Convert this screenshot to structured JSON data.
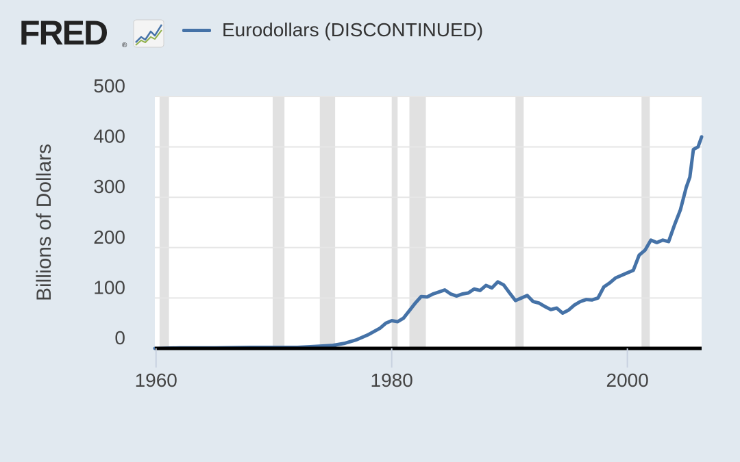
{
  "header": {
    "logo_text": "FRED",
    "logo_registered": "®",
    "logo_icon": "line-chart-icon",
    "legend_label": "Eurodollars (DISCONTINUED)"
  },
  "colors": {
    "background": "#e1e9f0",
    "plot_background": "#ffffff",
    "series": "#4572a7",
    "recession_band": "#e1e1e1",
    "grid": "#e6e6e6",
    "baseline": "#000000"
  },
  "chart_data": {
    "type": "line",
    "title": "",
    "xlabel": "",
    "ylabel": "Billions of Dollars",
    "xlim": [
      1959.9,
      2006.3
    ],
    "ylim": [
      0,
      500
    ],
    "yticks": [
      0,
      100,
      200,
      300,
      400,
      500
    ],
    "xticks": [
      1960,
      1980,
      2000
    ],
    "grid": true,
    "legend_position": "top-left",
    "recessions": [
      [
        1960.3,
        1961.1
      ],
      [
        1969.9,
        1970.9
      ],
      [
        1973.9,
        1975.2
      ],
      [
        1980.0,
        1980.5
      ],
      [
        1981.5,
        1982.9
      ],
      [
        1990.5,
        1991.2
      ],
      [
        2001.2,
        2001.9
      ]
    ],
    "series": [
      {
        "name": "Eurodollars (DISCONTINUED)",
        "x": [
          1959.9,
          1962,
          1965,
          1968,
          1970,
          1972,
          1973.5,
          1975,
          1976,
          1977,
          1978,
          1979,
          1979.5,
          1980,
          1980.5,
          1981,
          1981.5,
          1982,
          1982.5,
          1983,
          1983.5,
          1984,
          1984.5,
          1985,
          1985.5,
          1986,
          1986.5,
          1987,
          1987.5,
          1988,
          1988.5,
          1989,
          1989.5,
          1990,
          1990.5,
          1991,
          1991.5,
          1992,
          1992.5,
          1993,
          1993.5,
          1994,
          1994.5,
          1995,
          1995.5,
          1996,
          1996.5,
          1997,
          1997.5,
          1998,
          1998.5,
          1999,
          1999.5,
          2000,
          2000.5,
          2001,
          2001.5,
          2002,
          2002.5,
          2003,
          2003.5,
          2004,
          2004.5,
          2005,
          2005.3,
          2005.6,
          2006,
          2006.3
        ],
        "values": [
          0,
          1,
          1,
          2,
          2,
          2,
          4,
          6,
          10,
          17,
          27,
          40,
          50,
          55,
          53,
          60,
          75,
          90,
          103,
          102,
          108,
          112,
          116,
          108,
          104,
          108,
          110,
          118,
          115,
          125,
          120,
          132,
          126,
          110,
          95,
          100,
          105,
          93,
          90,
          83,
          77,
          80,
          70,
          76,
          86,
          93,
          97,
          96,
          100,
          122,
          130,
          140,
          145,
          150,
          155,
          185,
          195,
          215,
          210,
          215,
          212,
          245,
          275,
          320,
          340,
          395,
          400,
          420
        ]
      }
    ]
  }
}
